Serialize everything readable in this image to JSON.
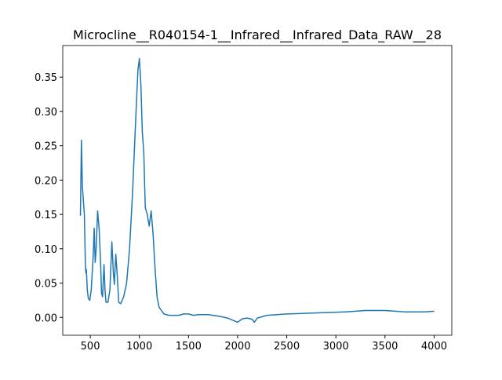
{
  "chart_data": {
    "type": "line",
    "title": "Microcline__R040154-1__Infrared__Infrared_Data_RAW__28",
    "x": [
      400,
      410,
      420,
      440,
      450,
      455,
      460,
      470,
      480,
      495,
      510,
      530,
      540,
      550,
      560,
      575,
      590,
      605,
      615,
      625,
      640,
      650,
      660,
      680,
      700,
      720,
      735,
      745,
      760,
      775,
      790,
      810,
      840,
      870,
      900,
      930,
      960,
      985,
      1000,
      1015,
      1030,
      1045,
      1060,
      1080,
      1100,
      1120,
      1140,
      1160,
      1180,
      1200,
      1250,
      1300,
      1400,
      1450,
      1500,
      1550,
      1600,
      1700,
      1800,
      1900,
      1950,
      2000,
      2050,
      2100,
      2150,
      2170,
      2200,
      2300,
      2400,
      2500,
      2700,
      2900,
      3100,
      3300,
      3500,
      3700,
      3900,
      4000
    ],
    "series": [
      {
        "color": "#1f77b4",
        "values": [
          0.148,
          0.258,
          0.19,
          0.15,
          0.08,
          0.065,
          0.07,
          0.04,
          0.028,
          0.025,
          0.04,
          0.09,
          0.13,
          0.08,
          0.1,
          0.155,
          0.13,
          0.08,
          0.035,
          0.03,
          0.077,
          0.04,
          0.022,
          0.022,
          0.04,
          0.11,
          0.065,
          0.048,
          0.092,
          0.06,
          0.022,
          0.02,
          0.03,
          0.05,
          0.1,
          0.18,
          0.28,
          0.36,
          0.377,
          0.34,
          0.27,
          0.24,
          0.16,
          0.15,
          0.133,
          0.155,
          0.12,
          0.07,
          0.03,
          0.015,
          0.005,
          0.003,
          0.003,
          0.005,
          0.005,
          0.003,
          0.004,
          0.004,
          0.002,
          -0.001,
          -0.004,
          -0.007,
          -0.002,
          -0.001,
          -0.003,
          -0.007,
          -0.001,
          0.003,
          0.004,
          0.005,
          0.006,
          0.007,
          0.008,
          0.01,
          0.01,
          0.008,
          0.008,
          0.009
        ]
      }
    ],
    "xlim": [
      220,
      4180
    ],
    "ylim": [
      -0.026,
      0.396
    ],
    "xticks": [
      500,
      1000,
      1500,
      2000,
      2500,
      3000,
      3500,
      4000
    ],
    "yticks": [
      {
        "value": 0,
        "label": "0.00"
      },
      {
        "value": 0.05,
        "label": "0.05"
      },
      {
        "value": 0.1,
        "label": "0.10"
      },
      {
        "value": 0.15,
        "label": "0.15"
      },
      {
        "value": 0.2,
        "label": "0.20"
      },
      {
        "value": 0.25,
        "label": "0.25"
      },
      {
        "value": 0.3,
        "label": "0.30"
      },
      {
        "value": 0.35,
        "label": "0.35"
      }
    ]
  }
}
